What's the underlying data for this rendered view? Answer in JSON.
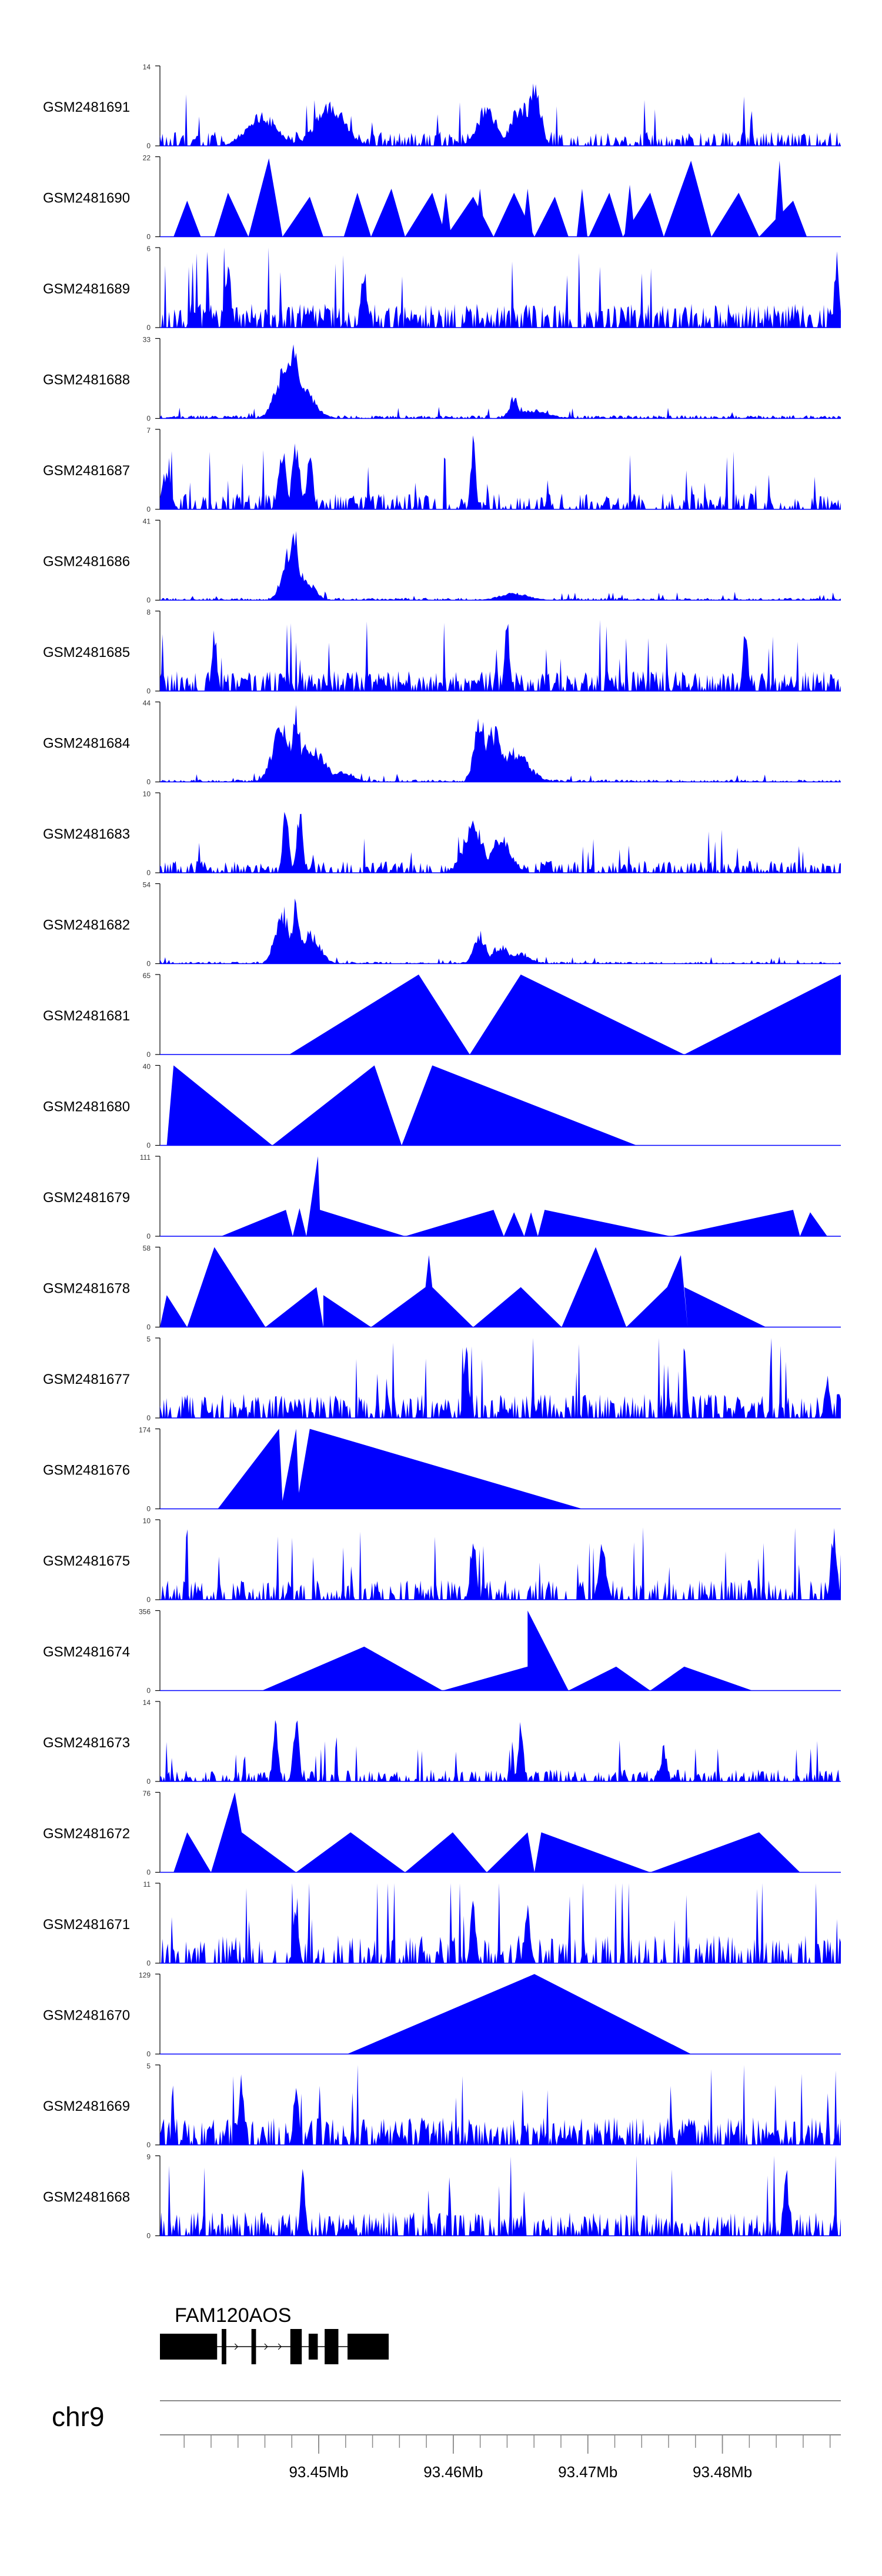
{
  "chart_data": {
    "type": "area",
    "title": "",
    "chromosome": "chr9",
    "xlabel": "",
    "xlim": [
      93.4382,
      93.4888
    ],
    "x_ticks": [
      93.45,
      93.46,
      93.47,
      93.48
    ],
    "x_tick_labels": [
      "93.45Mb",
      "93.46Mb",
      "93.47Mb",
      "93.48Mb"
    ],
    "color": "#0000ff",
    "tracks": [
      {
        "name": "GSM2481691",
        "ylim_label": "14",
        "ymax": 14,
        "pattern": "dense",
        "seed": 1,
        "peaks": [
          [
            0.55,
            1.0,
            0.012
          ],
          [
            0.53,
            0.6,
            0.02
          ],
          [
            0.48,
            0.55,
            0.02
          ],
          [
            0.25,
            0.6,
            0.03
          ],
          [
            0.15,
            0.45,
            0.03
          ]
        ],
        "base": 0.18,
        "sparsity": 0.45
      },
      {
        "name": "GSM2481690",
        "ylim_label": "22",
        "ymax": 22,
        "pattern": "triangles",
        "points": [
          [
            0.0,
            0
          ],
          [
            0.02,
            0
          ],
          [
            0.04,
            0.45
          ],
          [
            0.06,
            0
          ],
          [
            0.08,
            0
          ],
          [
            0.1,
            0.55
          ],
          [
            0.13,
            0
          ],
          [
            0.16,
            0.98
          ],
          [
            0.18,
            0
          ],
          [
            0.22,
            0.5
          ],
          [
            0.24,
            0
          ],
          [
            0.27,
            0
          ],
          [
            0.29,
            0.55
          ],
          [
            0.31,
            0
          ],
          [
            0.34,
            0.6
          ],
          [
            0.36,
            0
          ],
          [
            0.4,
            0.55
          ],
          [
            0.42,
            0
          ],
          [
            0.46,
            0.5
          ],
          [
            0.49,
            0
          ],
          [
            0.52,
            0.55
          ],
          [
            0.55,
            0
          ],
          [
            0.58,
            0.5
          ],
          [
            0.6,
            0
          ],
          [
            0.63,
            0
          ],
          [
            0.66,
            0.55
          ],
          [
            0.68,
            0
          ],
          [
            0.72,
            0.55
          ],
          [
            0.74,
            0
          ],
          [
            0.78,
            0.95
          ],
          [
            0.81,
            0
          ],
          [
            0.85,
            0.55
          ],
          [
            0.88,
            0
          ],
          [
            0.93,
            0.45
          ],
          [
            0.95,
            0
          ],
          [
            0.99,
            0
          ]
        ],
        "spikes": [
          [
            0.16,
            0.98
          ],
          [
            0.42,
            0.55
          ],
          [
            0.47,
            0.6
          ],
          [
            0.54,
            0.6
          ],
          [
            0.62,
            0.6
          ],
          [
            0.69,
            0.65
          ],
          [
            0.78,
            0.95
          ],
          [
            0.91,
            0.95
          ]
        ]
      },
      {
        "name": "GSM2481689",
        "ylim_label": "6",
        "ymax": 6,
        "pattern": "dense",
        "seed": 3,
        "peaks": [
          [
            0.995,
            1.0,
            0.004
          ],
          [
            0.1,
            0.9,
            0.006
          ],
          [
            0.3,
            0.85,
            0.006
          ]
        ],
        "base": 0.3,
        "sparsity": 0.3
      },
      {
        "name": "GSM2481688",
        "ylim_label": "33",
        "ymax": 33,
        "pattern": "dense",
        "seed": 4,
        "peaks": [
          [
            0.195,
            1.0,
            0.012
          ],
          [
            0.185,
            0.75,
            0.02
          ],
          [
            0.2,
            0.55,
            0.03
          ],
          [
            0.52,
            0.3,
            0.01
          ],
          [
            0.55,
            0.12,
            0.03
          ]
        ],
        "base": 0.04,
        "sparsity": 0.4
      },
      {
        "name": "GSM2481687",
        "ylim_label": "7",
        "ymax": 7,
        "pattern": "dense",
        "seed": 5,
        "peaks": [
          [
            0.46,
            1.0,
            0.005
          ],
          [
            0.2,
            0.95,
            0.008
          ],
          [
            0.18,
            0.9,
            0.008
          ],
          [
            0.22,
            0.85,
            0.006
          ],
          [
            0.01,
            0.6,
            0.008
          ]
        ],
        "base": 0.2,
        "sparsity": 0.45
      },
      {
        "name": "GSM2481686",
        "ylim_label": "41",
        "ymax": 41,
        "pattern": "dense",
        "seed": 6,
        "peaks": [
          [
            0.197,
            1.0,
            0.008
          ],
          [
            0.19,
            0.7,
            0.015
          ],
          [
            0.21,
            0.35,
            0.02
          ],
          [
            0.52,
            0.1,
            0.03
          ]
        ],
        "base": 0.03,
        "sparsity": 0.4
      },
      {
        "name": "GSM2481685",
        "ylim_label": "8",
        "ymax": 8,
        "pattern": "dense",
        "seed": 7,
        "peaks": [
          [
            0.51,
            1.0,
            0.005
          ],
          [
            0.86,
            0.95,
            0.005
          ],
          [
            0.08,
            0.85,
            0.005
          ]
        ],
        "base": 0.25,
        "sparsity": 0.35
      },
      {
        "name": "GSM2481684",
        "ylim_label": "44",
        "ymax": 44,
        "pattern": "dense",
        "seed": 8,
        "peaks": [
          [
            0.2,
            1.0,
            0.01
          ],
          [
            0.18,
            0.8,
            0.02
          ],
          [
            0.22,
            0.5,
            0.03
          ],
          [
            0.47,
            0.9,
            0.012
          ],
          [
            0.49,
            0.75,
            0.02
          ],
          [
            0.52,
            0.45,
            0.03
          ],
          [
            0.27,
            0.15,
            0.02
          ]
        ],
        "base": 0.03,
        "sparsity": 0.4
      },
      {
        "name": "GSM2481683",
        "ylim_label": "10",
        "ymax": 10,
        "pattern": "dense",
        "seed": 9,
        "peaks": [
          [
            0.185,
            1.0,
            0.006
          ],
          [
            0.205,
            0.95,
            0.006
          ],
          [
            0.46,
            0.7,
            0.02
          ],
          [
            0.5,
            0.5,
            0.02
          ]
        ],
        "base": 0.15,
        "sparsity": 0.45
      },
      {
        "name": "GSM2481682",
        "ylim_label": "54",
        "ymax": 54,
        "pattern": "dense",
        "seed": 10,
        "peaks": [
          [
            0.2,
            1.0,
            0.008
          ],
          [
            0.18,
            0.8,
            0.015
          ],
          [
            0.22,
            0.45,
            0.02
          ],
          [
            0.47,
            0.45,
            0.012
          ],
          [
            0.5,
            0.25,
            0.02
          ],
          [
            0.53,
            0.15,
            0.02
          ]
        ],
        "base": 0.025,
        "sparsity": 0.45
      },
      {
        "name": "GSM2481681",
        "ylim_label": "65",
        "ymax": 65,
        "pattern": "triangles",
        "points": [
          [
            0.19,
            0
          ],
          [
            0.38,
            1.0
          ],
          [
            0.455,
            0
          ],
          [
            0.53,
            1.0
          ],
          [
            0.77,
            0
          ],
          [
            1.0,
            1.0
          ],
          [
            1.0,
            0
          ]
        ]
      },
      {
        "name": "GSM2481680",
        "ylim_label": "40",
        "ymax": 40,
        "pattern": "triangles",
        "points": [
          [
            0.01,
            0
          ],
          [
            0.02,
            1.0
          ],
          [
            0.165,
            0
          ],
          [
            0.315,
            1.0
          ],
          [
            0.355,
            0
          ],
          [
            0.4,
            1.0
          ],
          [
            0.7,
            0
          ]
        ]
      },
      {
        "name": "GSM2481679",
        "ylim_label": "111",
        "ymax": 111,
        "pattern": "triangles",
        "points": [
          [
            0.09,
            0
          ],
          [
            0.185,
            0.33
          ],
          [
            0.195,
            0
          ],
          [
            0.205,
            0.35
          ],
          [
            0.215,
            0
          ],
          [
            0.232,
            1.0
          ],
          [
            0.235,
            0.33
          ],
          [
            0.36,
            0
          ],
          [
            0.49,
            0.33
          ],
          [
            0.505,
            0
          ],
          [
            0.52,
            0.3
          ],
          [
            0.535,
            0
          ],
          [
            0.545,
            0.3
          ],
          [
            0.555,
            0
          ],
          [
            0.565,
            0.33
          ],
          [
            0.75,
            0
          ],
          [
            0.93,
            0.33
          ],
          [
            0.94,
            0
          ],
          [
            0.955,
            0.3
          ],
          [
            0.98,
            0
          ]
        ]
      },
      {
        "name": "GSM2481678",
        "ylim_label": "58",
        "ymax": 58,
        "pattern": "triangles",
        "points": [
          [
            0.0,
            0
          ],
          [
            0.01,
            0.4
          ],
          [
            0.04,
            0
          ],
          [
            0.08,
            1.0
          ],
          [
            0.155,
            0
          ],
          [
            0.23,
            0.5
          ],
          [
            0.24,
            0
          ],
          [
            0.24,
            0.4
          ],
          [
            0.31,
            0
          ],
          [
            0.39,
            0.5
          ],
          [
            0.395,
            0.9
          ],
          [
            0.4,
            0.5
          ],
          [
            0.46,
            0
          ],
          [
            0.53,
            0.5
          ],
          [
            0.59,
            0
          ],
          [
            0.64,
            1.0
          ],
          [
            0.685,
            0
          ],
          [
            0.745,
            0.5
          ],
          [
            0.765,
            0.9
          ],
          [
            0.775,
            0
          ],
          [
            0.77,
            0.5
          ],
          [
            0.89,
            0
          ]
        ]
      },
      {
        "name": "GSM2481677",
        "ylim_label": "5",
        "ymax": 5,
        "pattern": "dense",
        "seed": 15,
        "peaks": [
          [
            0.45,
            1.0,
            0.005
          ],
          [
            0.98,
            0.7,
            0.005
          ]
        ],
        "base": 0.3,
        "sparsity": 0.4
      },
      {
        "name": "GSM2481676",
        "ylim_label": "174",
        "ymax": 174,
        "pattern": "triangles",
        "points": [
          [
            0.085,
            0
          ],
          [
            0.175,
            1.0
          ],
          [
            0.18,
            0.1
          ],
          [
            0.2,
            1.0
          ],
          [
            0.205,
            0
          ],
          [
            0.2,
            0
          ],
          [
            0.22,
            1.0
          ],
          [
            0.62,
            0
          ]
        ]
      },
      {
        "name": "GSM2481675",
        "ylim_label": "10",
        "ymax": 10,
        "pattern": "dense",
        "seed": 17,
        "peaks": [
          [
            0.99,
            1.0,
            0.006
          ],
          [
            0.46,
            0.95,
            0.006
          ],
          [
            0.65,
            0.75,
            0.008
          ]
        ],
        "base": 0.25,
        "sparsity": 0.5
      },
      {
        "name": "GSM2481674",
        "ylim_label": "356",
        "ymax": 356,
        "pattern": "triangles",
        "points": [
          [
            0.15,
            0
          ],
          [
            0.3,
            0.55
          ],
          [
            0.415,
            0
          ],
          [
            0.54,
            0.3
          ],
          [
            0.54,
            0.3
          ],
          [
            0.54,
            1.0
          ],
          [
            0.6,
            0
          ],
          [
            0.67,
            0.3
          ],
          [
            0.72,
            0
          ],
          [
            0.77,
            0.3
          ],
          [
            0.87,
            0
          ]
        ]
      },
      {
        "name": "GSM2481673",
        "ylim_label": "14",
        "ymax": 14,
        "pattern": "dense",
        "seed": 19,
        "peaks": [
          [
            0.53,
            1.0,
            0.005
          ],
          [
            0.17,
            0.95,
            0.005
          ],
          [
            0.2,
            0.85,
            0.006
          ],
          [
            0.74,
            0.5,
            0.006
          ]
        ],
        "base": 0.15,
        "sparsity": 0.5
      },
      {
        "name": "GSM2481672",
        "ylim_label": "76",
        "ymax": 76,
        "pattern": "triangles",
        "points": [
          [
            0.02,
            0
          ],
          [
            0.04,
            0.5
          ],
          [
            0.075,
            0
          ],
          [
            0.11,
            1.0
          ],
          [
            0.12,
            0.5
          ],
          [
            0.2,
            0
          ],
          [
            0.28,
            0.5
          ],
          [
            0.36,
            0
          ],
          [
            0.43,
            0.5
          ],
          [
            0.48,
            0
          ],
          [
            0.54,
            0.5
          ],
          [
            0.55,
            0
          ],
          [
            0.56,
            0.5
          ],
          [
            0.72,
            0
          ],
          [
            0.88,
            0.5
          ],
          [
            0.94,
            0
          ]
        ]
      },
      {
        "name": "GSM2481671",
        "ylim_label": "11",
        "ymax": 11,
        "pattern": "dense",
        "seed": 21,
        "peaks": [
          [
            0.46,
            1.0,
            0.005
          ],
          [
            0.2,
            0.95,
            0.005
          ],
          [
            0.54,
            0.75,
            0.006
          ]
        ],
        "base": 0.35,
        "sparsity": 0.55
      },
      {
        "name": "GSM2481670",
        "ylim_label": "129",
        "ymax": 129,
        "pattern": "triangles",
        "points": [
          [
            0.275,
            0
          ],
          [
            0.55,
            1.0
          ],
          [
            0.78,
            0
          ]
        ]
      },
      {
        "name": "GSM2481669",
        "ylim_label": "5",
        "ymax": 5,
        "pattern": "dense",
        "seed": 23,
        "peaks": [
          [
            0.12,
            1.0,
            0.005
          ],
          [
            0.2,
            0.9,
            0.005
          ]
        ],
        "base": 0.35,
        "sparsity": 0.3
      },
      {
        "name": "GSM2481668",
        "ylim_label": "9",
        "ymax": 9,
        "pattern": "dense",
        "seed": 24,
        "peaks": [
          [
            0.21,
            1.0,
            0.005
          ],
          [
            0.92,
            0.9,
            0.005
          ]
        ],
        "base": 0.3,
        "sparsity": 0.4
      }
    ],
    "gene": {
      "name": "FAM120AOS",
      "start": 93.4382,
      "end": 93.4552
    }
  }
}
